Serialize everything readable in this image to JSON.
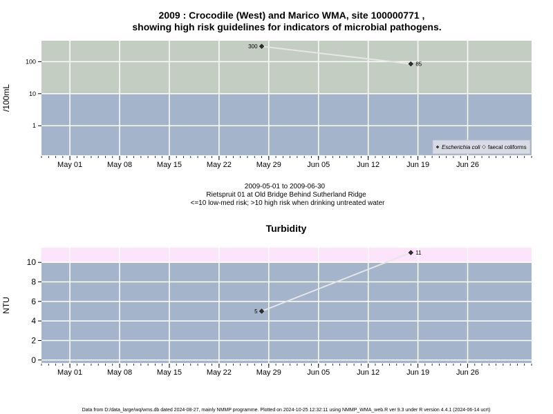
{
  "title_lines": [
    "2009 : Crocodile (West) and Marico WMA, site 100000771 ,",
    "showing high risk guidelines for indicators of microbial pathogens."
  ],
  "caption_lines": [
    "2009-05-01 to 2009-06-30",
    "Rietspruit 01 at Old Bridge Behind Sutherland Ridge",
    "<=10 low-med risk; >10 high risk when drinking untreated water"
  ],
  "footer": "Data from D:/data_large/wq/wms.db dated 2024-08-27, mainly NMMP programme. Plotted on 2024-10-25 12:32:11 using NMMP_WMA_web.R ver 9.3 under R version 4.4.1 (2024-06-14 ucrt)",
  "colors": {
    "high_risk_micro": "#c3cdc1",
    "low_risk": "#a3b4cb",
    "high_risk_turb": "#fce4fa",
    "grid": "#ffffff",
    "series_line": "#e6e6e6",
    "point": "#333333"
  },
  "chart_data": [
    {
      "type": "line",
      "title": "",
      "ylabel": "/100mL",
      "yscale": "log",
      "ylim": [
        0.12,
        450
      ],
      "yticks": [
        1,
        10,
        100
      ],
      "ytick_labels": [
        "1",
        "10",
        "100"
      ],
      "xlim": [
        "2009-04-27",
        "2009-07-05"
      ],
      "xticks": [
        "2009-05-01",
        "2009-05-08",
        "2009-05-15",
        "2009-05-22",
        "2009-05-29",
        "2009-06-05",
        "2009-06-12",
        "2009-06-19",
        "2009-06-26"
      ],
      "xtick_labels": [
        "May 01",
        "May 08",
        "May 15",
        "May 22",
        "May 29",
        "Jun 05",
        "Jun 12",
        "Jun 19",
        "Jun 26"
      ],
      "threshold": 10,
      "series": [
        {
          "name": "Escherichia coli",
          "x": [
            "2009-05-28",
            "2009-06-18"
          ],
          "y": [
            300,
            85
          ],
          "labels": [
            "300",
            "85"
          ]
        }
      ],
      "legend": {
        "position": "bottom-right",
        "entries": [
          "Escherichia coli",
          "faecal coliforms"
        ]
      }
    },
    {
      "type": "line",
      "title": "Turbidity",
      "ylabel": "NTU",
      "ylim": [
        -0.3,
        11.5
      ],
      "yticks": [
        0,
        2,
        4,
        6,
        8,
        10
      ],
      "ytick_labels": [
        "0",
        "2",
        "4",
        "6",
        "8",
        "10"
      ],
      "xlim": [
        "2009-04-27",
        "2009-07-05"
      ],
      "xticks": [
        "2009-05-01",
        "2009-05-08",
        "2009-05-15",
        "2009-05-22",
        "2009-05-29",
        "2009-06-05",
        "2009-06-12",
        "2009-06-19",
        "2009-06-26"
      ],
      "xtick_labels": [
        "May 01",
        "May 08",
        "May 15",
        "May 22",
        "May 29",
        "Jun 05",
        "Jun 12",
        "Jun 19",
        "Jun 26"
      ],
      "threshold": 10,
      "series": [
        {
          "x": [
            "2009-05-28",
            "2009-06-18"
          ],
          "y": [
            5,
            11
          ],
          "labels": [
            "5",
            "11"
          ]
        }
      ]
    }
  ]
}
